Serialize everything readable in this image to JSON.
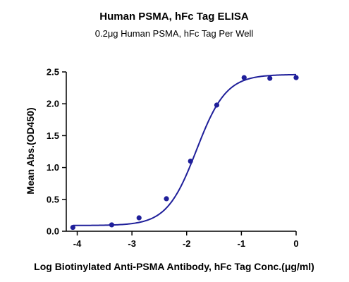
{
  "chart_data": {
    "type": "scatter",
    "title": "Human PSMA, hFc Tag ELISA",
    "subtitle": "0.2μg Human PSMA, hFc Tag Per Well",
    "xlabel": "Log Biotinylated Anti-PSMA Antibody, hFc Tag Conc.(μg/ml)",
    "ylabel": "Mean Abs.(OD450)",
    "xlim": [
      -4.2,
      0
    ],
    "ylim": [
      0,
      2.5
    ],
    "xticks": [
      -4,
      -3,
      -2,
      -1,
      0
    ],
    "yticks": [
      0.0,
      0.5,
      1.0,
      1.5,
      2.0,
      2.5
    ],
    "xtick_labels": [
      "-4",
      "-3",
      "-2",
      "-1",
      "0"
    ],
    "ytick_labels": [
      "0.0",
      "0.5",
      "1.0",
      "1.5",
      "2.0",
      "2.5"
    ],
    "grid": false,
    "legend": "none",
    "series_color": "#1f1f9a",
    "points": [
      {
        "x": -4.08,
        "y": 0.06
      },
      {
        "x": -3.37,
        "y": 0.1
      },
      {
        "x": -2.87,
        "y": 0.21
      },
      {
        "x": -2.37,
        "y": 0.51
      },
      {
        "x": -1.93,
        "y": 1.1
      },
      {
        "x": -1.45,
        "y": 1.98
      },
      {
        "x": -0.95,
        "y": 2.41
      },
      {
        "x": -0.48,
        "y": 2.4
      },
      {
        "x": 0.0,
        "y": 2.41
      }
    ],
    "curve": {
      "model": "4PL",
      "bottom": 0.09,
      "top": 2.46,
      "logEC50": -1.82,
      "hillslope": 1.6,
      "x_range": [
        -4.08,
        0.0
      ]
    }
  }
}
